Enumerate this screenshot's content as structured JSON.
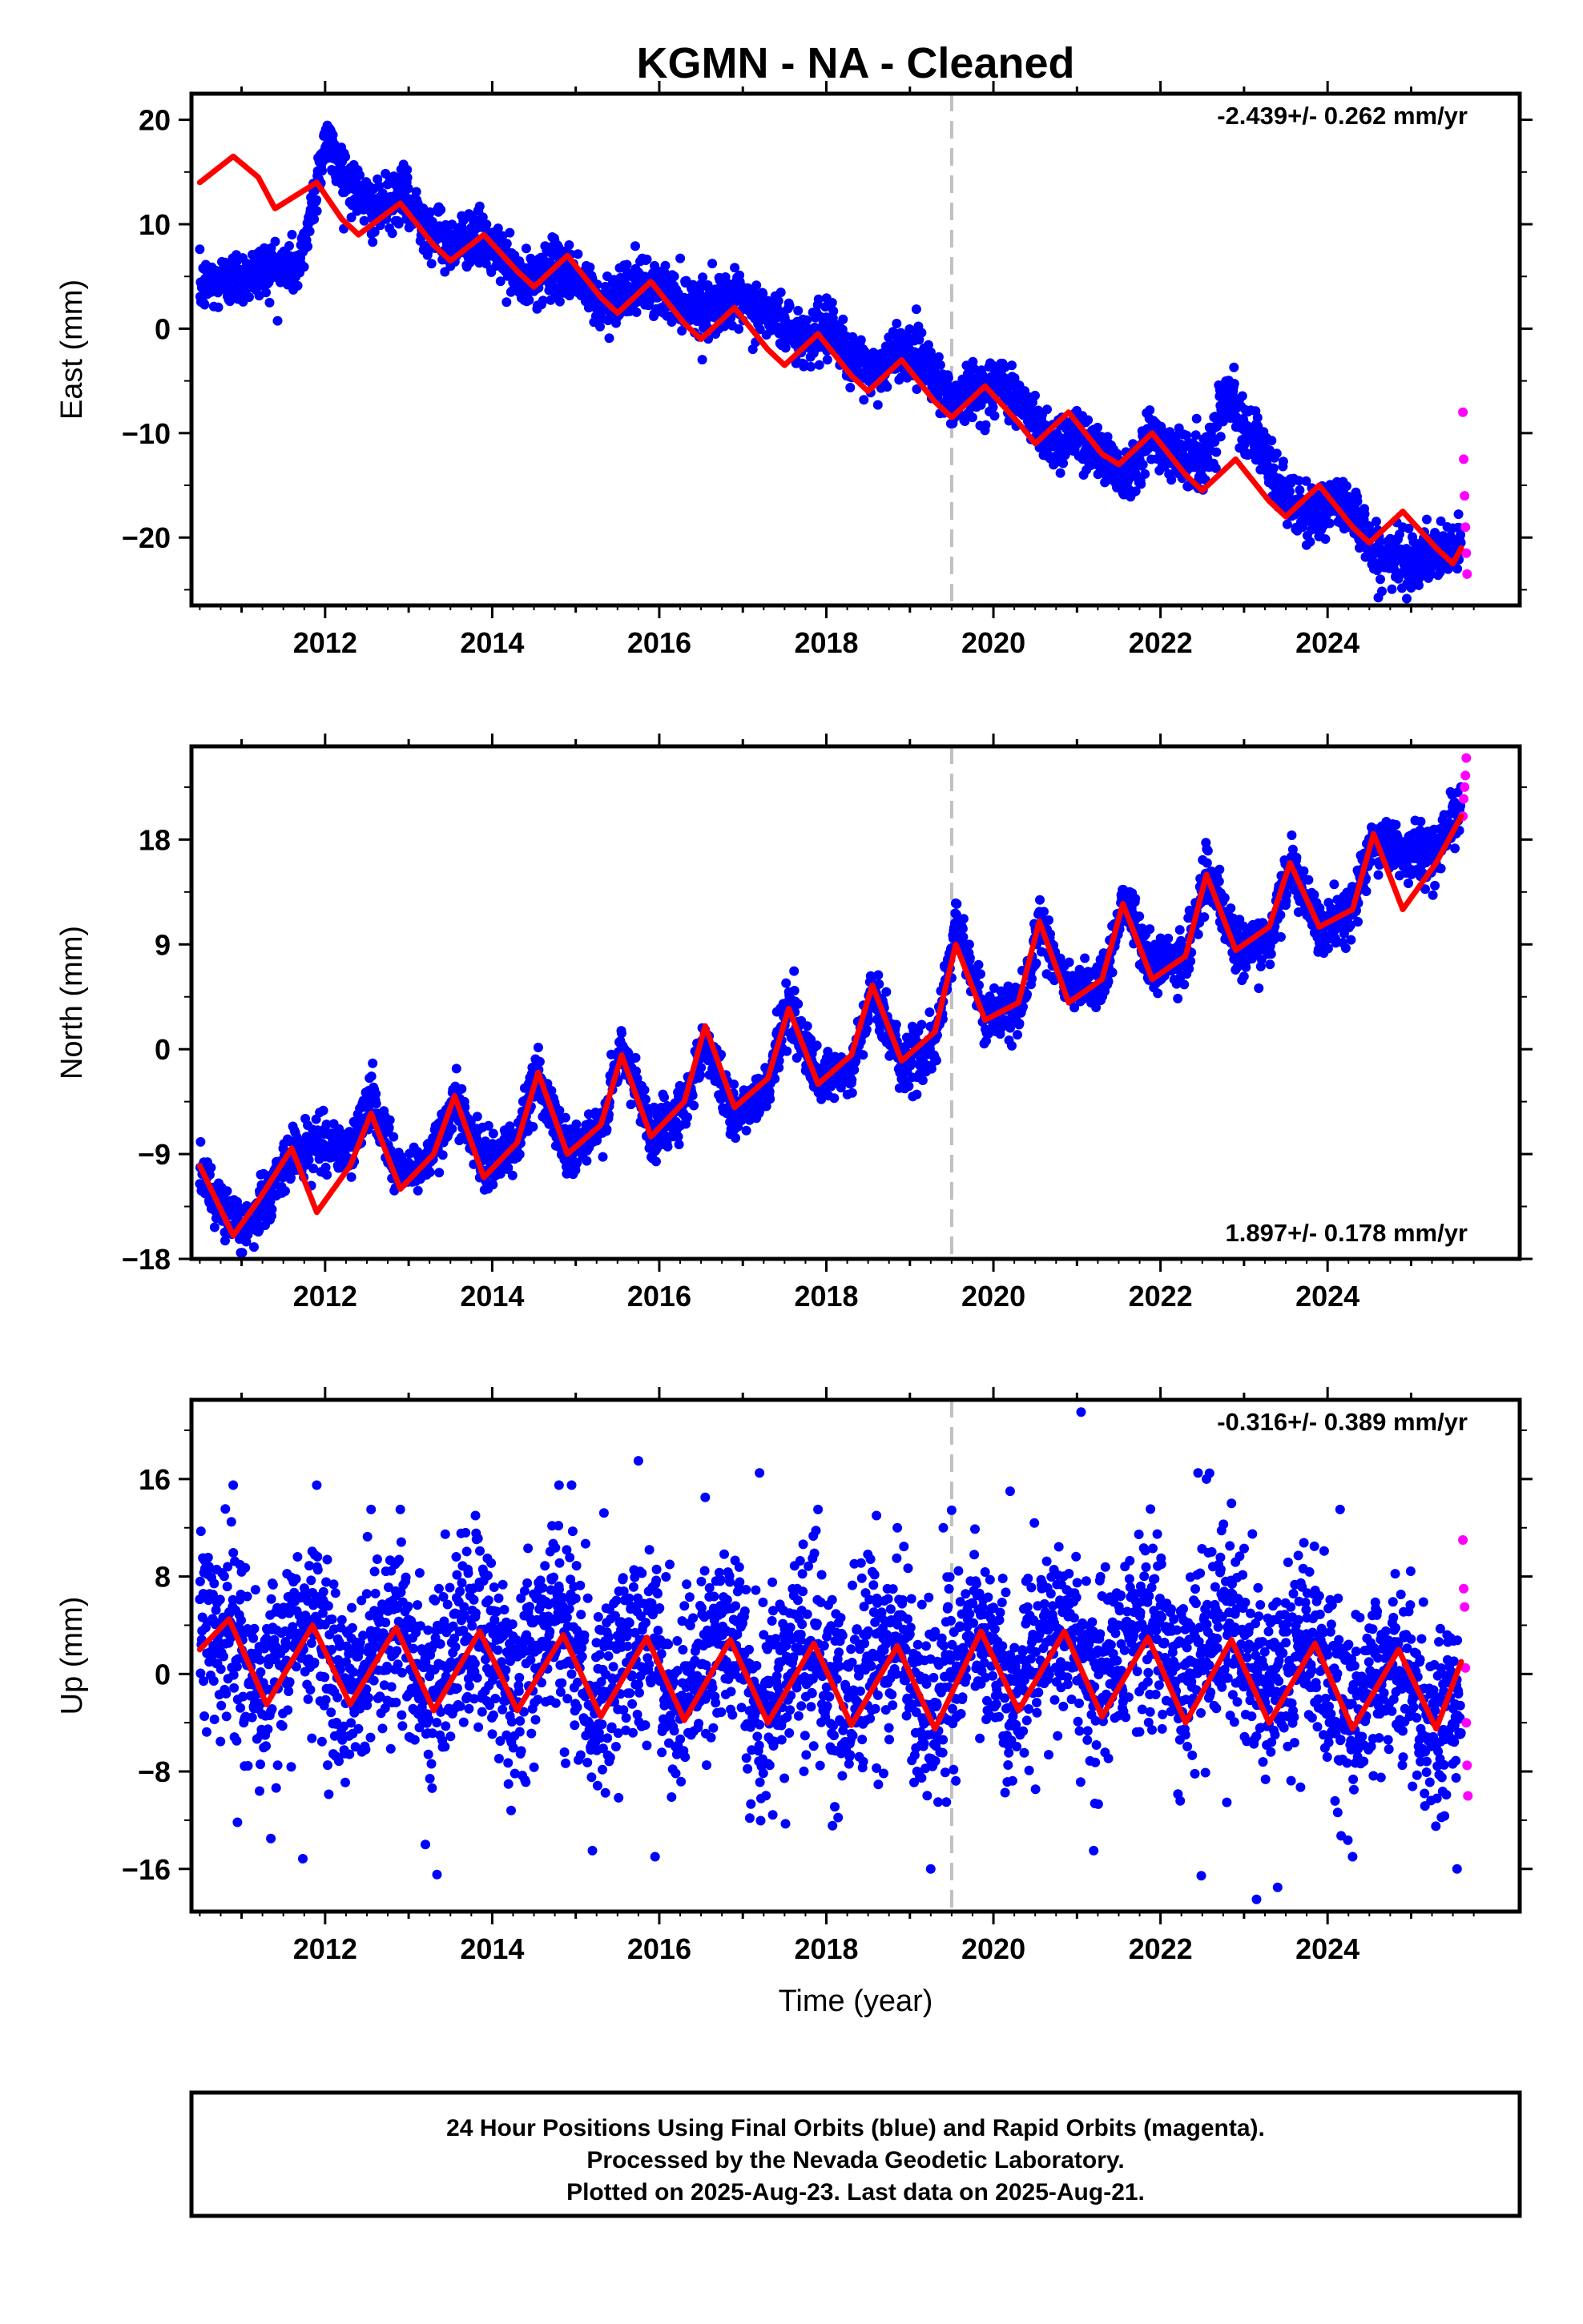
{
  "chart_data": {
    "type": "scatter",
    "title": "KGMN  - NA - Cleaned",
    "xlabel": "Time (year)",
    "x_ticks": [
      2012,
      2014,
      2016,
      2018,
      2020,
      2022,
      2024
    ],
    "x_range": [
      2010.4,
      2026.3
    ],
    "equipment_change": 2019.5,
    "colors": {
      "final_orbits": "#0000ff",
      "rapid_orbits": "#ff00ff",
      "model": "#ff0000",
      "equipment_change_line": "#c0c0c0"
    },
    "panels": [
      {
        "id": "east",
        "ylabel": "East (mm)",
        "yticks": [
          20,
          10,
          0,
          -10,
          -20
        ],
        "ylim": [
          -26.5,
          22.5
        ],
        "rate": "-2.439+/- 0.262 mm/yr",
        "rate_position": "top-right",
        "series": [
          {
            "kind": "final_orbits_trend",
            "x": [
              2010.5,
              2011.0,
              2011.4,
              2011.7,
              2012.0,
              2012.3,
              2012.6,
              2012.9,
              2013.2,
              2013.5,
              2013.8,
              2014.1,
              2014.4,
              2014.7,
              2015.0,
              2015.3,
              2015.6,
              2015.9,
              2016.2,
              2016.5,
              2016.8,
              2017.1,
              2017.4,
              2017.7,
              2018.0,
              2018.3,
              2018.6,
              2018.9,
              2019.2,
              2019.5,
              2019.8,
              2020.1,
              2020.4,
              2020.7,
              2021.0,
              2021.3,
              2021.6,
              2021.9,
              2022.2,
              2022.5,
              2022.8,
              2023.1,
              2023.4,
              2023.7,
              2024.0,
              2024.3,
              2024.6,
              2024.9,
              2025.2,
              2025.55
            ],
            "y": [
              4,
              5,
              6,
              6,
              18,
              14,
              11,
              13,
              10,
              8,
              9,
              7,
              4,
              6,
              5,
              2,
              4,
              4,
              3,
              2,
              3,
              2,
              1,
              -1,
              0,
              -3,
              -4,
              -2,
              -3,
              -7,
              -6,
              -5,
              -8,
              -11,
              -10,
              -12,
              -14,
              -10,
              -12,
              -13,
              -6,
              -10,
              -15,
              -18,
              -17,
              -17,
              -22,
              -22,
              -22,
              -21
            ]
          },
          {
            "kind": "model",
            "x": [
              2010.5,
              2010.9,
              2011.2,
              2011.4,
              2011.6,
              2011.9,
              2012.2,
              2012.4,
              2012.9,
              2013.3,
              2013.5,
              2013.9,
              2014.3,
              2014.5,
              2014.9,
              2015.3,
              2015.5,
              2015.9,
              2016.3,
              2016.5,
              2016.9,
              2017.3,
              2017.5,
              2017.9,
              2018.3,
              2018.5,
              2018.9,
              2019.3,
              2019.5,
              2019.9,
              2020.3,
              2020.5,
              2020.9,
              2021.3,
              2021.5,
              2021.9,
              2022.3,
              2022.5,
              2022.9,
              2023.3,
              2023.5,
              2023.9,
              2024.3,
              2024.5,
              2024.9,
              2025.3,
              2025.5,
              2025.6
            ],
            "y": [
              14,
              16.5,
              14.5,
              11.5,
              12.5,
              14,
              10.5,
              9,
              12,
              8,
              6.5,
              9,
              5.5,
              4,
              7,
              3,
              1.5,
              4.5,
              0.5,
              -1,
              2,
              -2,
              -3.5,
              -0.5,
              -4.5,
              -6,
              -3,
              -7,
              -8.5,
              -5.5,
              -9,
              -11,
              -8,
              -12,
              -13,
              -10,
              -14,
              -15.5,
              -12.5,
              -16.5,
              -18,
              -15,
              -19,
              -20.5,
              -17.5,
              -21,
              -22.5,
              -21
            ]
          }
        ],
        "rapid_orbits": {
          "x": [
            2025.62,
            2025.63,
            2025.64,
            2025.65,
            2025.66,
            2025.67
          ],
          "y": [
            -8,
            -12.5,
            -16,
            -19,
            -21.5,
            -23.5
          ]
        }
      },
      {
        "id": "north",
        "ylabel": "North (mm)",
        "yticks": [
          18,
          9,
          0,
          -9,
          -18
        ],
        "ylim": [
          -18,
          26
        ],
        "rate": "1.897+/- 0.178 mm/yr",
        "rate_position": "bottom-right",
        "series": [
          {
            "kind": "final_orbits_trend",
            "x": [
              2010.5,
              2010.8,
              2011.0,
              2011.3,
              2011.6,
              2012.0,
              2012.3,
              2012.55,
              2012.9,
              2013.3,
              2013.55,
              2013.9,
              2014.3,
              2014.55,
              2014.9,
              2015.3,
              2015.55,
              2015.9,
              2016.3,
              2016.55,
              2016.9,
              2017.3,
              2017.55,
              2017.9,
              2018.3,
              2018.55,
              2018.9,
              2019.3,
              2019.55,
              2019.9,
              2020.3,
              2020.55,
              2020.9,
              2021.3,
              2021.55,
              2021.9,
              2022.3,
              2022.55,
              2022.9,
              2023.3,
              2023.55,
              2023.9,
              2024.3,
              2024.55,
              2024.9,
              2025.3,
              2025.6
            ],
            "y": [
              -10,
              -14,
              -15.5,
              -13,
              -9,
              -8,
              -9,
              -4,
              -11,
              -9,
              -4,
              -10,
              -8,
              -2,
              -9,
              -7,
              0,
              -7,
              -5,
              1,
              -6,
              -3,
              4,
              -3,
              -2,
              5,
              -1,
              0,
              11,
              3,
              3,
              11,
              5,
              5,
              13,
              7,
              8,
              15,
              9,
              9,
              16,
              10,
              12,
              18,
              17,
              17,
              21
            ]
          },
          {
            "kind": "model",
            "x": [
              2010.5,
              2010.9,
              2011.2,
              2011.6,
              2011.9,
              2012.3,
              2012.55,
              2012.9,
              2013.3,
              2013.55,
              2013.9,
              2014.3,
              2014.55,
              2014.9,
              2015.3,
              2015.55,
              2015.9,
              2016.3,
              2016.55,
              2016.9,
              2017.3,
              2017.55,
              2017.9,
              2018.3,
              2018.55,
              2018.9,
              2019.3,
              2019.55,
              2019.9,
              2020.3,
              2020.55,
              2020.9,
              2021.3,
              2021.55,
              2021.9,
              2022.3,
              2022.55,
              2022.9,
              2023.3,
              2023.55,
              2023.9,
              2024.3,
              2024.55,
              2024.9,
              2025.3,
              2025.6
            ],
            "y": [
              -10,
              -16,
              -13,
              -8.5,
              -14,
              -10,
              -5.5,
              -12,
              -9,
              -4,
              -11,
              -8,
              -2,
              -9,
              -6.5,
              -0.5,
              -7.5,
              -4.5,
              2,
              -5,
              -2.5,
              3.5,
              -3,
              -0.5,
              5.5,
              -1,
              1.5,
              9,
              2.5,
              4,
              11,
              4,
              6,
              12.5,
              6,
              8,
              15,
              8.5,
              10.5,
              16,
              10.5,
              12,
              18.5,
              12,
              16,
              20
            ]
          }
        ],
        "rapid_orbits": {
          "x": [
            2025.62,
            2025.63,
            2025.64,
            2025.65,
            2025.66
          ],
          "y": [
            20,
            21.5,
            22.5,
            23.5,
            25
          ]
        }
      },
      {
        "id": "up",
        "ylabel": "Up (mm)",
        "yticks": [
          16,
          8,
          0,
          -8,
          -16
        ],
        "ylim": [
          -19.5,
          22.5
        ],
        "rate": "-0.316+/- 0.389 mm/yr",
        "rate_position": "top-right",
        "series": [
          {
            "kind": "final_orbits_trend",
            "x": [
              2010.5,
              2010.9,
              2011.2,
              2011.6,
              2011.9,
              2012.2,
              2012.6,
              2012.9,
              2013.2,
              2013.6,
              2013.9,
              2014.2,
              2014.6,
              2014.9,
              2015.2,
              2015.6,
              2015.9,
              2016.2,
              2016.6,
              2016.9,
              2017.2,
              2017.6,
              2017.9,
              2018.2,
              2018.6,
              2018.9,
              2019.2,
              2019.6,
              2019.9,
              2020.2,
              2020.6,
              2020.9,
              2021.2,
              2021.6,
              2021.9,
              2022.2,
              2022.6,
              2022.9,
              2023.2,
              2023.6,
              2023.9,
              2024.2,
              2024.6,
              2024.9,
              2025.2,
              2025.55
            ],
            "y": [
              5,
              3,
              -2,
              3,
              4,
              -2,
              3,
              4,
              -2,
              3,
              4,
              -2,
              3,
              4,
              -3,
              2,
              3,
              -3,
              2,
              3,
              -3,
              2,
              2,
              -3,
              2,
              2,
              -4,
              2,
              3,
              -2,
              3,
              4,
              -1,
              3,
              5,
              -2,
              3,
              4,
              -3,
              2,
              2,
              -4,
              0,
              1,
              -4,
              -3
            ]
          },
          {
            "kind": "model",
            "x": [
              2010.5,
              2010.85,
              2011.3,
              2011.85,
              2012.3,
              2012.85,
              2013.3,
              2013.85,
              2014.3,
              2014.85,
              2015.3,
              2015.85,
              2016.3,
              2016.85,
              2017.3,
              2017.85,
              2018.3,
              2018.85,
              2019.3,
              2019.85,
              2020.3,
              2020.85,
              2021.3,
              2021.85,
              2022.3,
              2022.85,
              2023.3,
              2023.85,
              2024.3,
              2024.85,
              2025.3,
              2025.6
            ],
            "y": [
              2,
              4.5,
              -2.5,
              4,
              -2.5,
              3.8,
              -3,
              3.5,
              -3,
              3.2,
              -3.5,
              3,
              -3.8,
              2.8,
              -4,
              2.5,
              -4.2,
              2.3,
              -4.5,
              3.5,
              -3,
              3.5,
              -3.5,
              3,
              -4,
              2.8,
              -4,
              2.5,
              -4.5,
              2,
              -4.5,
              1
            ]
          }
        ],
        "outliers": {
          "x": [
            2010.9,
            2011.9,
            2012.55,
            2012.9,
            2013.8,
            2014.8,
            2014.95,
            2015.75,
            2016.55,
            2017.2,
            2017.9,
            2018.6,
            2018.85,
            2019.4,
            2020.2,
            2021.05,
            2022.45,
            2022.55,
            2022.85,
            2024.15,
            2011.35,
            2013.2,
            2015.2,
            2015.95,
            2019.25,
            2021.2,
            2023.15,
            2024.3,
            2025.55
          ],
          "y": [
            15.5,
            15.5,
            13.5,
            13.5,
            13,
            15.5,
            15.5,
            17.5,
            14.5,
            16.5,
            13.5,
            13,
            12,
            12,
            15,
            21.5,
            16.5,
            16,
            14,
            13.5,
            -13.5,
            -14,
            -14.5,
            -15,
            -16,
            -14.5,
            -18.5,
            -15,
            -16
          ]
        },
        "rapid_orbits": {
          "x": [
            2025.62,
            2025.63,
            2025.64,
            2025.65,
            2025.66,
            2025.67,
            2025.68
          ],
          "y": [
            11,
            7,
            5.5,
            0.5,
            -4,
            -7.5,
            -10
          ]
        }
      }
    ]
  },
  "footer": {
    "lines": [
      "24 Hour Positions Using Final Orbits (blue) and Rapid Orbits (magenta).",
      "Processed by the Nevada Geodetic Laboratory.",
      "Plotted on 2025-Aug-23. Last data on 2025-Aug-21."
    ]
  }
}
